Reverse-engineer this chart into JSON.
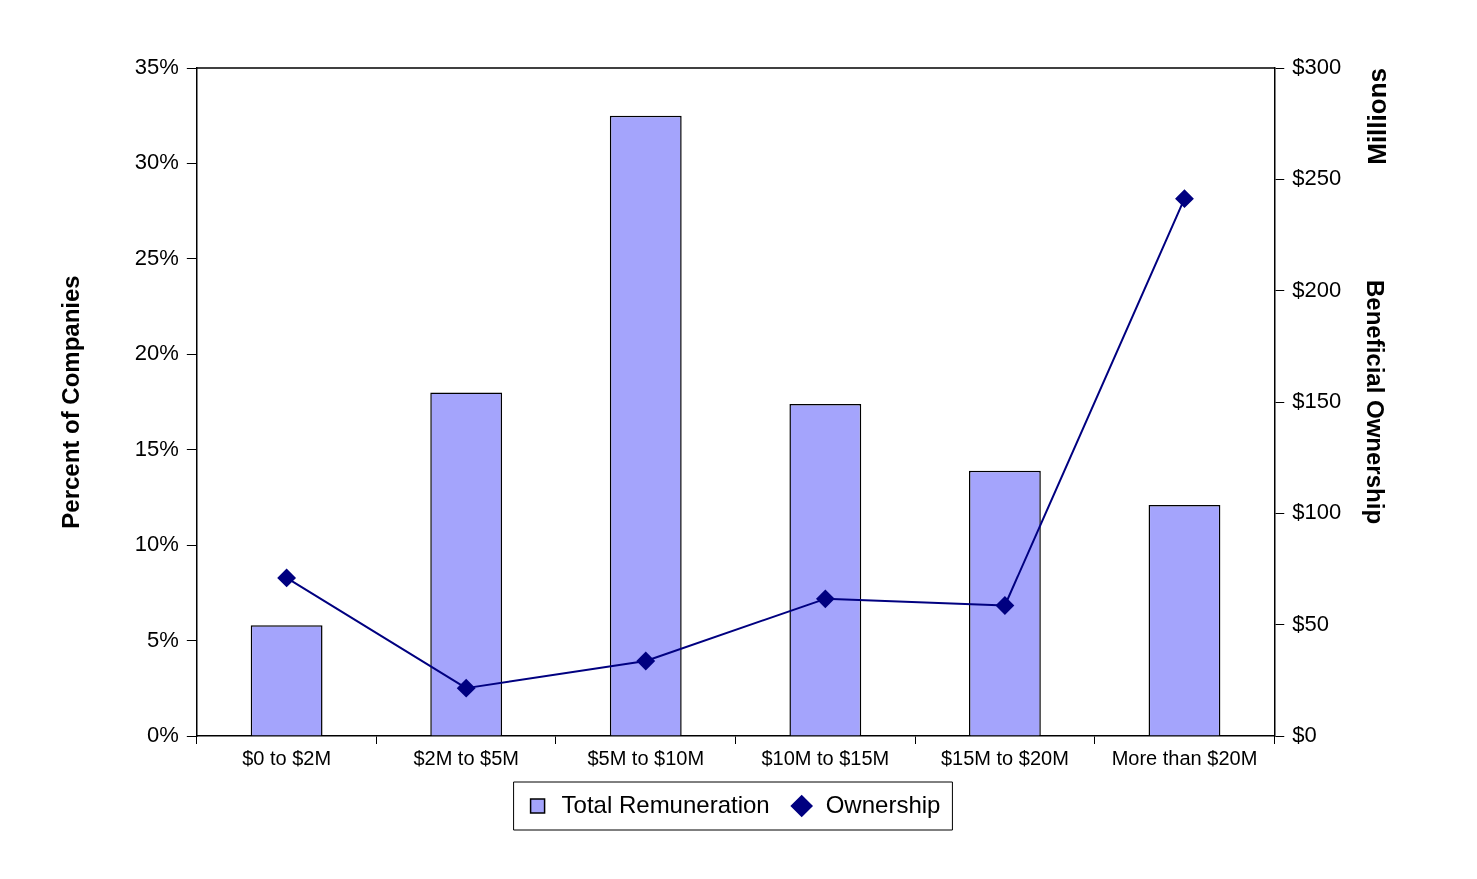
{
  "chart_data": {
    "type": "bar",
    "categories": [
      "$0 to $2M",
      "$2M to $5M",
      "$5M to $10M",
      "$10M to $15M",
      "$15M to $20M",
      "More than $20M"
    ],
    "series": [
      {
        "name": "Total Remuneration",
        "color": "#a4a4fc",
        "values": [
          5.8,
          18.0,
          32.5,
          17.4,
          13.9,
          12.1
        ]
      },
      {
        "name": "Ownership",
        "type": "line",
        "axis": "y2",
        "color": "#000080",
        "values": [
          71,
          21.5,
          33.7,
          61.6,
          58.6,
          241.3
        ]
      }
    ],
    "ylabel": "Percent of Companies",
    "y2label": "Beneficial Ownership",
    "annotations": [
      "Millions"
    ],
    "ylim": [
      0,
      35
    ],
    "yticks": [
      {
        "value": 0,
        "label": "0%"
      },
      {
        "value": 5,
        "label": "5%"
      },
      {
        "value": 10,
        "label": "10%"
      },
      {
        "value": 15,
        "label": "15%"
      },
      {
        "value": 20,
        "label": "20%"
      },
      {
        "value": 25,
        "label": "25%"
      },
      {
        "value": 30,
        "label": "30%"
      },
      {
        "value": 35,
        "label": "35%"
      }
    ],
    "y2lim": [
      0,
      300
    ],
    "y2ticks": [
      {
        "value": 0,
        "label": "$0"
      },
      {
        "value": 50,
        "label": "$50"
      },
      {
        "value": 100,
        "label": "$100"
      },
      {
        "value": 150,
        "label": "$150"
      },
      {
        "value": 200,
        "label": "$200"
      },
      {
        "value": 250,
        "label": "$250"
      },
      {
        "value": 300,
        "label": "$300"
      }
    ],
    "legend": "bottom",
    "marker": "diamond",
    "line_style": "solid"
  }
}
